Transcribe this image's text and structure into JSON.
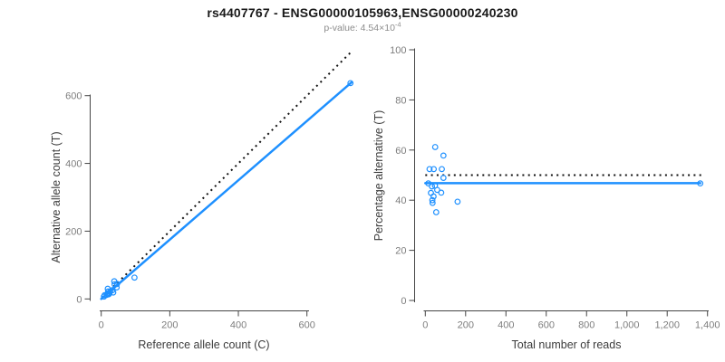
{
  "title": "rs4407767 - ENSG00000105963,ENSG00000240230",
  "subtitle": {
    "prefix": "p-value: 4.54×10",
    "exponent": "-4"
  },
  "colors": {
    "accent_blue": "#1E90FF",
    "reference_line_black": "#111111",
    "axis_line_gray": "#444444",
    "tick_label_gray": "#7e7e7e",
    "axis_title_gray": "#3c3c3c",
    "background": "#ffffff"
  },
  "chart_data": [
    {
      "type": "scatter",
      "panel": "left",
      "xlabel": "Reference allele count (C)",
      "ylabel": "Alternative allele count (T)",
      "xlim": [
        0,
        730
      ],
      "ylim": [
        0,
        735
      ],
      "xticks": [
        0,
        200,
        400,
        600
      ],
      "xtick_labels": [
        "0",
        "200",
        "400",
        "600"
      ],
      "yticks": [
        0,
        200,
        400,
        600
      ],
      "ytick_labels": [
        "0",
        "200",
        "400",
        "600"
      ],
      "grid": false,
      "legend": "none",
      "points": [
        [
          19,
          30
        ],
        [
          38,
          52
        ],
        [
          10,
          11
        ],
        [
          20,
          22
        ],
        [
          39,
          43
        ],
        [
          46,
          44
        ],
        [
          8,
          7
        ],
        [
          18,
          15
        ],
        [
          26,
          22
        ],
        [
          33,
          26
        ],
        [
          45,
          34
        ],
        [
          16,
          12
        ],
        [
          24,
          17
        ],
        [
          21,
          14
        ],
        [
          22,
          14
        ],
        [
          97,
          63
        ],
        [
          35,
          19
        ],
        [
          727,
          637
        ]
      ],
      "fit_line": {
        "style": "solid",
        "from": [
          0,
          0
        ],
        "to": [
          731,
          640
        ]
      },
      "reference_line": {
        "style": "dotted",
        "from": [
          0,
          0
        ],
        "to": [
          726,
          726
        ]
      }
    },
    {
      "type": "scatter",
      "panel": "right",
      "xlabel": "Total number of reads",
      "ylabel": "Percentage alternative (T)",
      "xlim": [
        0,
        1400
      ],
      "ylim": [
        0,
        100
      ],
      "xticks": [
        0,
        200,
        400,
        600,
        800,
        1000,
        1200,
        1400
      ],
      "xtick_labels": [
        "0",
        "200",
        "400",
        "600",
        "800",
        "1,000",
        "1,200",
        "1,400"
      ],
      "yticks": [
        0,
        20,
        40,
        60,
        80,
        100
      ],
      "ytick_labels": [
        "0",
        "20",
        "40",
        "60",
        "80",
        "100"
      ],
      "grid": false,
      "legend": "none",
      "points": [
        [
          49,
          61.2
        ],
        [
          90,
          57.8
        ],
        [
          21,
          52.4
        ],
        [
          42,
          52.4
        ],
        [
          82,
          52.4
        ],
        [
          90,
          48.9
        ],
        [
          15,
          46.7
        ],
        [
          33,
          45.5
        ],
        [
          48,
          45.8
        ],
        [
          59,
          44.1
        ],
        [
          79,
          43.0
        ],
        [
          28,
          42.9
        ],
        [
          41,
          41.5
        ],
        [
          35,
          40.0
        ],
        [
          36,
          38.9
        ],
        [
          160,
          39.4
        ],
        [
          54,
          35.2
        ],
        [
          1364,
          46.7
        ]
      ],
      "fit_line": {
        "style": "solid",
        "from": [
          0,
          46.8
        ],
        "to": [
          1364,
          46.8
        ]
      },
      "reference_line": {
        "style": "dotted",
        "from": [
          0,
          50
        ],
        "to": [
          1372,
          50
        ]
      }
    }
  ]
}
